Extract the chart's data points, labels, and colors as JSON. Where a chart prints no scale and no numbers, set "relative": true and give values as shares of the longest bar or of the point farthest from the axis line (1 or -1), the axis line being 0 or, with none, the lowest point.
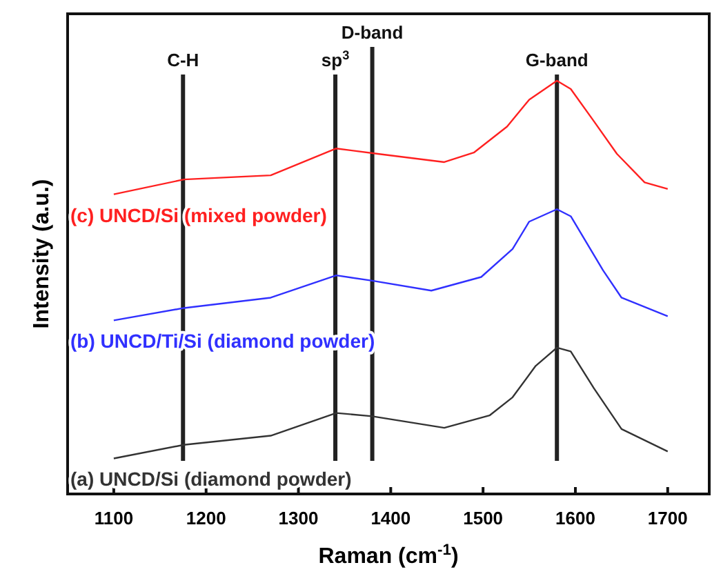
{
  "chart_data": {
    "type": "line",
    "relative": true,
    "xlabel": "Raman (cm$^{-1}$)",
    "ylabel": "Intensity (a.u.)",
    "xlim": [
      1050,
      1745
    ],
    "xticks": [
      1100,
      1200,
      1300,
      1400,
      1500,
      1600,
      1700
    ],
    "legend": false,
    "series": [
      {
        "name": "(a) UNCD/Si (diamond powder)",
        "color": "#333333",
        "x": [
          1100,
          1176,
          1270,
          1341,
          1380,
          1458,
          1507,
          1532,
          1557,
          1580,
          1595,
          1620,
          1650,
          1700
        ],
        "values": [
          0.086,
          0.119,
          0.141,
          0.196,
          0.188,
          0.16,
          0.19,
          0.234,
          0.31,
          0.354,
          0.345,
          0.256,
          0.157,
          0.103
        ]
      },
      {
        "name": "(b) UNCD/Ti/Si (diamond powder)",
        "color": "#3030ff",
        "x": [
          1100,
          1176,
          1270,
          1341,
          1380,
          1444,
          1498,
          1532,
          1550,
          1580,
          1595,
          1630,
          1650,
          1700
        ],
        "values": [
          0.42,
          0.45,
          0.475,
          0.529,
          0.516,
          0.492,
          0.525,
          0.593,
          0.659,
          0.689,
          0.672,
          0.541,
          0.475,
          0.43
        ]
      },
      {
        "name": "(c) UNCD/Si (mixed powder)",
        "color": "#ff2020",
        "x": [
          1100,
          1176,
          1270,
          1341,
          1386,
          1458,
          1490,
          1526,
          1550,
          1580,
          1595,
          1620,
          1645,
          1675,
          1700
        ],
        "values": [
          0.725,
          0.761,
          0.771,
          0.836,
          0.823,
          0.803,
          0.826,
          0.889,
          0.954,
          1.0,
          0.98,
          0.902,
          0.823,
          0.754,
          0.738
        ]
      }
    ],
    "ref_lines": [
      {
        "axis": "x",
        "value": 1175,
        "label": "C-H",
        "color": "#222222"
      },
      {
        "axis": "x",
        "value": 1340,
        "label": "sp$^{3}$",
        "color": "#222222"
      },
      {
        "axis": "x",
        "value": 1380,
        "label": "D-band",
        "color": "#222222"
      },
      {
        "axis": "x",
        "value": 1580,
        "label": "G-band",
        "color": "#222222"
      }
    ]
  }
}
